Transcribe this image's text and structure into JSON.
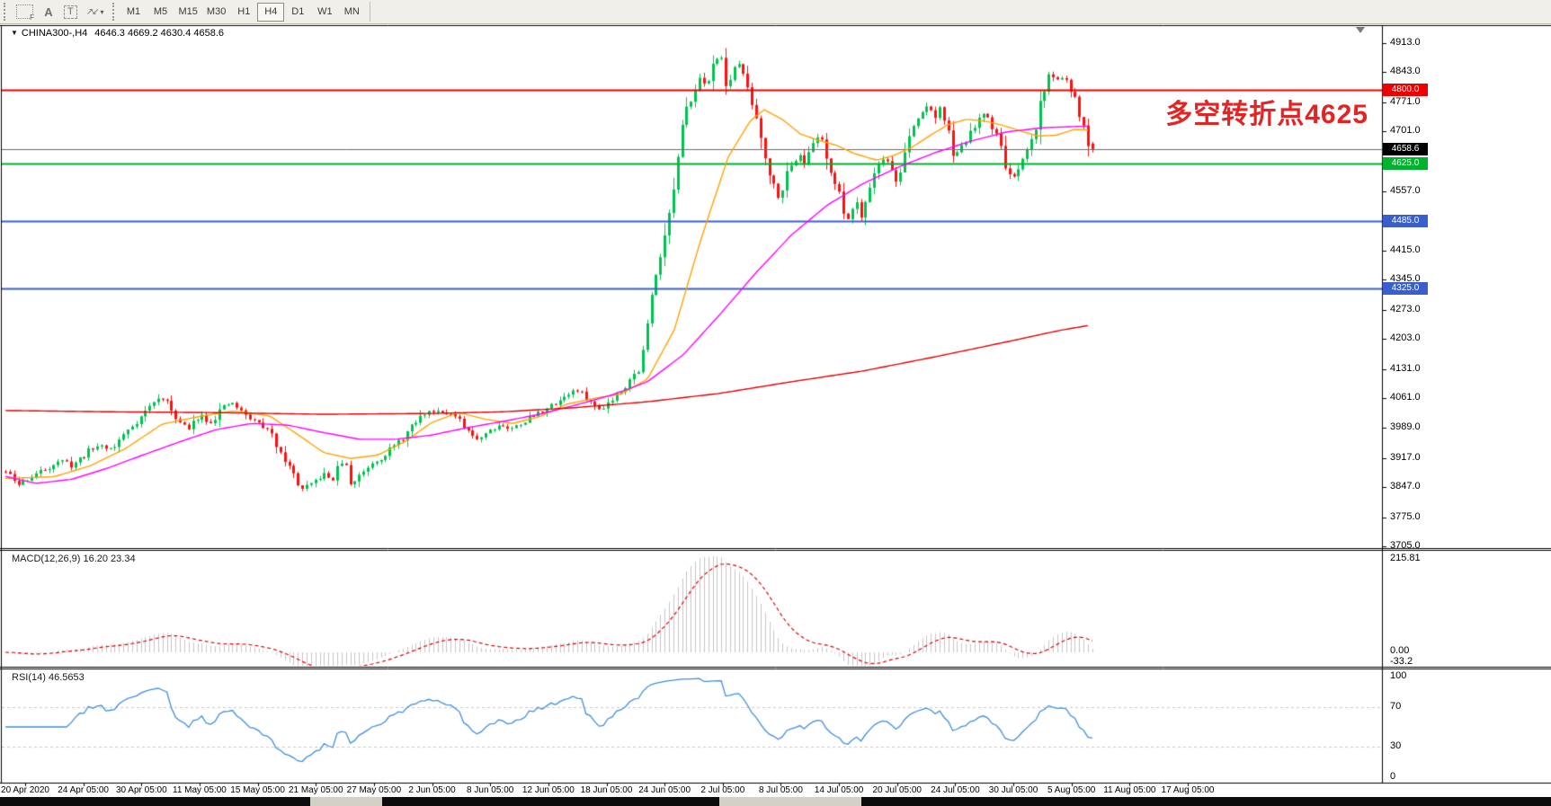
{
  "toolbar": {
    "icon_f_label": "F",
    "icon_a_label": "A",
    "icon_t_label": "T",
    "icon_arrows_glyph": "↗↙",
    "icon_caret": "▾",
    "timeframes": [
      "M1",
      "M5",
      "M15",
      "M30",
      "H1",
      "H4",
      "D1",
      "W1",
      "MN"
    ],
    "active_timeframe": "H4"
  },
  "chart": {
    "dropdown_glyph": "▼",
    "symbol_timeframe": "CHINA300-,H4",
    "ohlc_text": "4646.3 4669.2 4630.4 4658.6",
    "annotation": {
      "text": "多空转折点4625",
      "color": "#e12424"
    }
  },
  "chart_data": {
    "type": "candlestick",
    "symbol": "CHINA300-",
    "timeframe": "H4",
    "last_ohlc": {
      "open": 4646.3,
      "high": 4669.2,
      "low": 4630.4,
      "close": 4658.6
    },
    "candle_colors": {
      "up": "#00c24e",
      "down": "#fe1010"
    },
    "synthesis": {
      "bars": 250,
      "seed": 11,
      "jitter": 9,
      "wick": 7
    },
    "price_axis_ticks": [
      4913.0,
      4843.0,
      4771.0,
      4701.0,
      4557.0,
      4415.0,
      4345.0,
      4273.0,
      4203.0,
      4131.0,
      4061.0,
      3989.0,
      3917.0,
      3847.0,
      3775.0,
      3705.0
    ],
    "horizontal_lines": [
      {
        "value": 4800.0,
        "label": "4800.0",
        "color": "#ee0000",
        "badge_bg": "#ee0000",
        "width": 2
      },
      {
        "value": 4658.6,
        "label": "4658.6",
        "color": "#6b6b6b",
        "badge_bg": "#000000",
        "width": 1
      },
      {
        "value": 4625.0,
        "label": "4625.0",
        "color": "#00b22d",
        "badge_bg": "#00b22d",
        "width": 2
      },
      {
        "value": 4485.0,
        "label": "4485.0",
        "color": "#3a5fcd",
        "badge_bg": "#3a5fcd",
        "width": 2
      },
      {
        "value": 4325.0,
        "label": "4325.0",
        "color": "#3a5fcd",
        "badge_bg": "#3a5fcd",
        "width": 2
      }
    ],
    "close_anchors": [
      [
        6,
        3884
      ],
      [
        20,
        3852
      ],
      [
        35,
        3873
      ],
      [
        50,
        3890
      ],
      [
        65,
        3912
      ],
      [
        80,
        3899
      ],
      [
        95,
        3927
      ],
      [
        110,
        3949
      ],
      [
        125,
        3938
      ],
      [
        140,
        3981
      ],
      [
        155,
        4013
      ],
      [
        170,
        4050
      ],
      [
        180,
        4063
      ],
      [
        190,
        4035
      ],
      [
        200,
        4003
      ],
      [
        210,
        3985
      ],
      [
        222,
        4024
      ],
      [
        234,
        4003
      ],
      [
        246,
        4035
      ],
      [
        258,
        4050
      ],
      [
        270,
        4024
      ],
      [
        282,
        4007
      ],
      [
        294,
        3992
      ],
      [
        304,
        3964
      ],
      [
        314,
        3927
      ],
      [
        324,
        3884
      ],
      [
        336,
        3841
      ],
      [
        348,
        3856
      ],
      [
        358,
        3877
      ],
      [
        370,
        3866
      ],
      [
        382,
        3917
      ],
      [
        390,
        3852
      ],
      [
        400,
        3877
      ],
      [
        412,
        3905
      ],
      [
        424,
        3921
      ],
      [
        436,
        3942
      ],
      [
        448,
        3964
      ],
      [
        460,
        3998
      ],
      [
        472,
        4024
      ],
      [
        484,
        4032
      ],
      [
        496,
        4028
      ],
      [
        508,
        4011
      ],
      [
        520,
        3977
      ],
      [
        532,
        3964
      ],
      [
        544,
        3985
      ],
      [
        556,
        3998
      ],
      [
        568,
        3985
      ],
      [
        580,
        4003
      ],
      [
        592,
        4016
      ],
      [
        604,
        4032
      ],
      [
        616,
        4045
      ],
      [
        628,
        4067
      ],
      [
        640,
        4080
      ],
      [
        652,
        4063
      ],
      [
        664,
        4032
      ],
      [
        676,
        4050
      ],
      [
        688,
        4075
      ],
      [
        700,
        4106
      ],
      [
        712,
        4132
      ],
      [
        720,
        4240
      ],
      [
        728,
        4352
      ],
      [
        736,
        4430
      ],
      [
        744,
        4499
      ],
      [
        752,
        4607
      ],
      [
        760,
        4725
      ],
      [
        768,
        4783
      ],
      [
        776,
        4833
      ],
      [
        784,
        4801
      ],
      [
        792,
        4861
      ],
      [
        800,
        4897
      ],
      [
        808,
        4811
      ],
      [
        816,
        4843
      ],
      [
        824,
        4869
      ],
      [
        832,
        4790
      ],
      [
        840,
        4745
      ],
      [
        848,
        4672
      ],
      [
        856,
        4600
      ],
      [
        864,
        4548
      ],
      [
        872,
        4580
      ],
      [
        880,
        4618
      ],
      [
        888,
        4655
      ],
      [
        896,
        4622
      ],
      [
        904,
        4672
      ],
      [
        912,
        4698
      ],
      [
        920,
        4635
      ],
      [
        928,
        4578
      ],
      [
        936,
        4525
      ],
      [
        944,
        4490
      ],
      [
        952,
        4538
      ],
      [
        958,
        4502
      ],
      [
        966,
        4568
      ],
      [
        974,
        4610
      ],
      [
        982,
        4642
      ],
      [
        990,
        4615
      ],
      [
        998,
        4578
      ],
      [
        1006,
        4645
      ],
      [
        1014,
        4705
      ],
      [
        1022,
        4736
      ],
      [
        1030,
        4766
      ],
      [
        1038,
        4735
      ],
      [
        1046,
        4758
      ],
      [
        1054,
        4695
      ],
      [
        1062,
        4638
      ],
      [
        1070,
        4664
      ],
      [
        1078,
        4694
      ],
      [
        1086,
        4714
      ],
      [
        1094,
        4748
      ],
      [
        1102,
        4720
      ],
      [
        1110,
        4684
      ],
      [
        1118,
        4624
      ],
      [
        1126,
        4578
      ],
      [
        1134,
        4610
      ],
      [
        1142,
        4654
      ],
      [
        1150,
        4694
      ],
      [
        1158,
        4784
      ],
      [
        1166,
        4834
      ],
      [
        1174,
        4824
      ],
      [
        1182,
        4838
      ],
      [
        1190,
        4802
      ],
      [
        1198,
        4758
      ],
      [
        1206,
        4704
      ],
      [
        1213,
        4658.6
      ]
    ],
    "ma_lines": [
      {
        "name": "fast-ma",
        "color": "#ffa200",
        "anchors": [
          [
            6,
            3868
          ],
          [
            60,
            3872
          ],
          [
            100,
            3898
          ],
          [
            140,
            3940
          ],
          [
            180,
            3998
          ],
          [
            220,
            4016
          ],
          [
            260,
            4030
          ],
          [
            300,
            4018
          ],
          [
            330,
            3975
          ],
          [
            360,
            3930
          ],
          [
            390,
            3916
          ],
          [
            420,
            3924
          ],
          [
            450,
            3956
          ],
          [
            480,
            4002
          ],
          [
            510,
            4026
          ],
          [
            540,
            4010
          ],
          [
            570,
            4000
          ],
          [
            600,
            4016
          ],
          [
            630,
            4046
          ],
          [
            660,
            4060
          ],
          [
            690,
            4070
          ],
          [
            720,
            4106
          ],
          [
            750,
            4225
          ],
          [
            780,
            4445
          ],
          [
            810,
            4640
          ],
          [
            835,
            4728
          ],
          [
            850,
            4753
          ],
          [
            870,
            4730
          ],
          [
            890,
            4695
          ],
          [
            910,
            4680
          ],
          [
            930,
            4668
          ],
          [
            950,
            4648
          ],
          [
            975,
            4632
          ],
          [
            995,
            4644
          ],
          [
            1015,
            4664
          ],
          [
            1035,
            4692
          ],
          [
            1055,
            4718
          ],
          [
            1075,
            4730
          ],
          [
            1095,
            4726
          ],
          [
            1115,
            4716
          ],
          [
            1135,
            4702
          ],
          [
            1155,
            4690
          ],
          [
            1175,
            4692
          ],
          [
            1195,
            4706
          ],
          [
            1213,
            4704
          ]
        ]
      },
      {
        "name": "mid-ma",
        "color": "#ff00ff",
        "anchors": [
          [
            6,
            3873
          ],
          [
            40,
            3856
          ],
          [
            80,
            3866
          ],
          [
            120,
            3893
          ],
          [
            160,
            3925
          ],
          [
            200,
            3956
          ],
          [
            240,
            3985
          ],
          [
            280,
            4000
          ],
          [
            320,
            3996
          ],
          [
            360,
            3978
          ],
          [
            400,
            3962
          ],
          [
            440,
            3962
          ],
          [
            480,
            3972
          ],
          [
            520,
            3990
          ],
          [
            560,
            4005
          ],
          [
            600,
            4022
          ],
          [
            640,
            4044
          ],
          [
            680,
            4068
          ],
          [
            720,
            4100
          ],
          [
            760,
            4165
          ],
          [
            800,
            4260
          ],
          [
            840,
            4360
          ],
          [
            880,
            4452
          ],
          [
            920,
            4524
          ],
          [
            960,
            4576
          ],
          [
            1000,
            4616
          ],
          [
            1040,
            4650
          ],
          [
            1080,
            4678
          ],
          [
            1120,
            4700
          ],
          [
            1160,
            4710
          ],
          [
            1213,
            4714
          ]
        ]
      },
      {
        "name": "slow-ma",
        "color": "#e00000",
        "anchors": [
          [
            6,
            4031
          ],
          [
            120,
            4028
          ],
          [
            240,
            4026
          ],
          [
            360,
            4022
          ],
          [
            480,
            4024
          ],
          [
            560,
            4028
          ],
          [
            640,
            4038
          ],
          [
            720,
            4052
          ],
          [
            800,
            4072
          ],
          [
            880,
            4100
          ],
          [
            960,
            4126
          ],
          [
            1040,
            4160
          ],
          [
            1120,
            4196
          ],
          [
            1180,
            4224
          ],
          [
            1213,
            4236
          ]
        ]
      }
    ],
    "x_axis_labels": [
      "20 Apr 2020",
      "24 Apr 05:00",
      "30 Apr 05:00",
      "11 May 05:00",
      "15 May 05:00",
      "21 May 05:00",
      "27 May 05:00",
      "2 Jun 05:00",
      "8 Jun 05:00",
      "12 Jun 05:00",
      "18 Jun 05:00",
      "24 Jun 05:00",
      "2 Jul 05:00",
      "8 Jul 05:00",
      "14 Jul 05:00",
      "20 Jul 05:00",
      "24 Jul 05:00",
      "30 Jul 05:00",
      "5 Aug 05:00",
      "11 Aug 05:00",
      "17 Aug 05:00"
    ],
    "macd": {
      "label": "MACD(12,26,9) 16.20 23.34",
      "params": [
        12,
        26,
        9
      ],
      "current_values": [
        16.2,
        23.34
      ],
      "axis_labels": [
        "215.81",
        "0.00",
        "-33.2"
      ],
      "histogram_color": "#c6c6c6",
      "signal_color": "#e00000"
    },
    "rsi": {
      "label": "RSI(14) 46.5653",
      "period": 14,
      "current_value": 46.5653,
      "axis_labels": [
        "100",
        "70",
        "30",
        "0"
      ],
      "axis_values": [
        100,
        70,
        30,
        0
      ],
      "levels": [
        70,
        30
      ],
      "line_color": "#3e8ede",
      "level_color": "#c8c8c8"
    }
  }
}
